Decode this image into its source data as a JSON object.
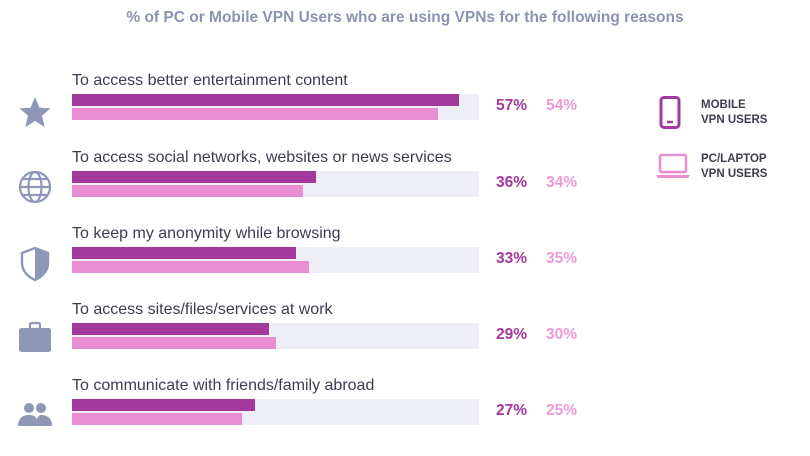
{
  "chart_data": {
    "type": "bar",
    "orientation": "horizontal",
    "title": "% of PC or Mobile VPN Users who are using VPNs for the following reasons",
    "categories": [
      "To access better entertainment content",
      "To access social networks, websites or news services",
      "To keep my anonymity while browsing",
      "To access sites/files/services at work",
      "To communicate with friends/family abroad"
    ],
    "category_icons": [
      "star-icon",
      "globe-icon",
      "shield-icon",
      "briefcase-icon",
      "people-icon"
    ],
    "series": [
      {
        "name": "MOBILE VPN USERS",
        "values": [
          57,
          36,
          33,
          29,
          27
        ],
        "labels": [
          "57%",
          "36%",
          "33%",
          "29%",
          "27%"
        ]
      },
      {
        "name": "PC/LAPTOP VPN USERS",
        "values": [
          54,
          34,
          35,
          30,
          25
        ],
        "labels": [
          "54%",
          "34%",
          "35%",
          "30%",
          "25%"
        ]
      }
    ],
    "xlim": [
      0,
      60
    ],
    "legend": {
      "position": "right",
      "items": [
        {
          "line1": "MOBILE",
          "line2": "VPN USERS",
          "icon": "mobile-phone-icon"
        },
        {
          "line1": "PC/LAPTOP",
          "line2": "VPN USERS",
          "icon": "laptop-icon"
        }
      ]
    },
    "colors": {
      "mobile": "#a3399b",
      "pc": "#ea8ed3",
      "pc_text": "#ee9ad8",
      "track": "#edeef6",
      "icon": "#8f97b8"
    }
  }
}
